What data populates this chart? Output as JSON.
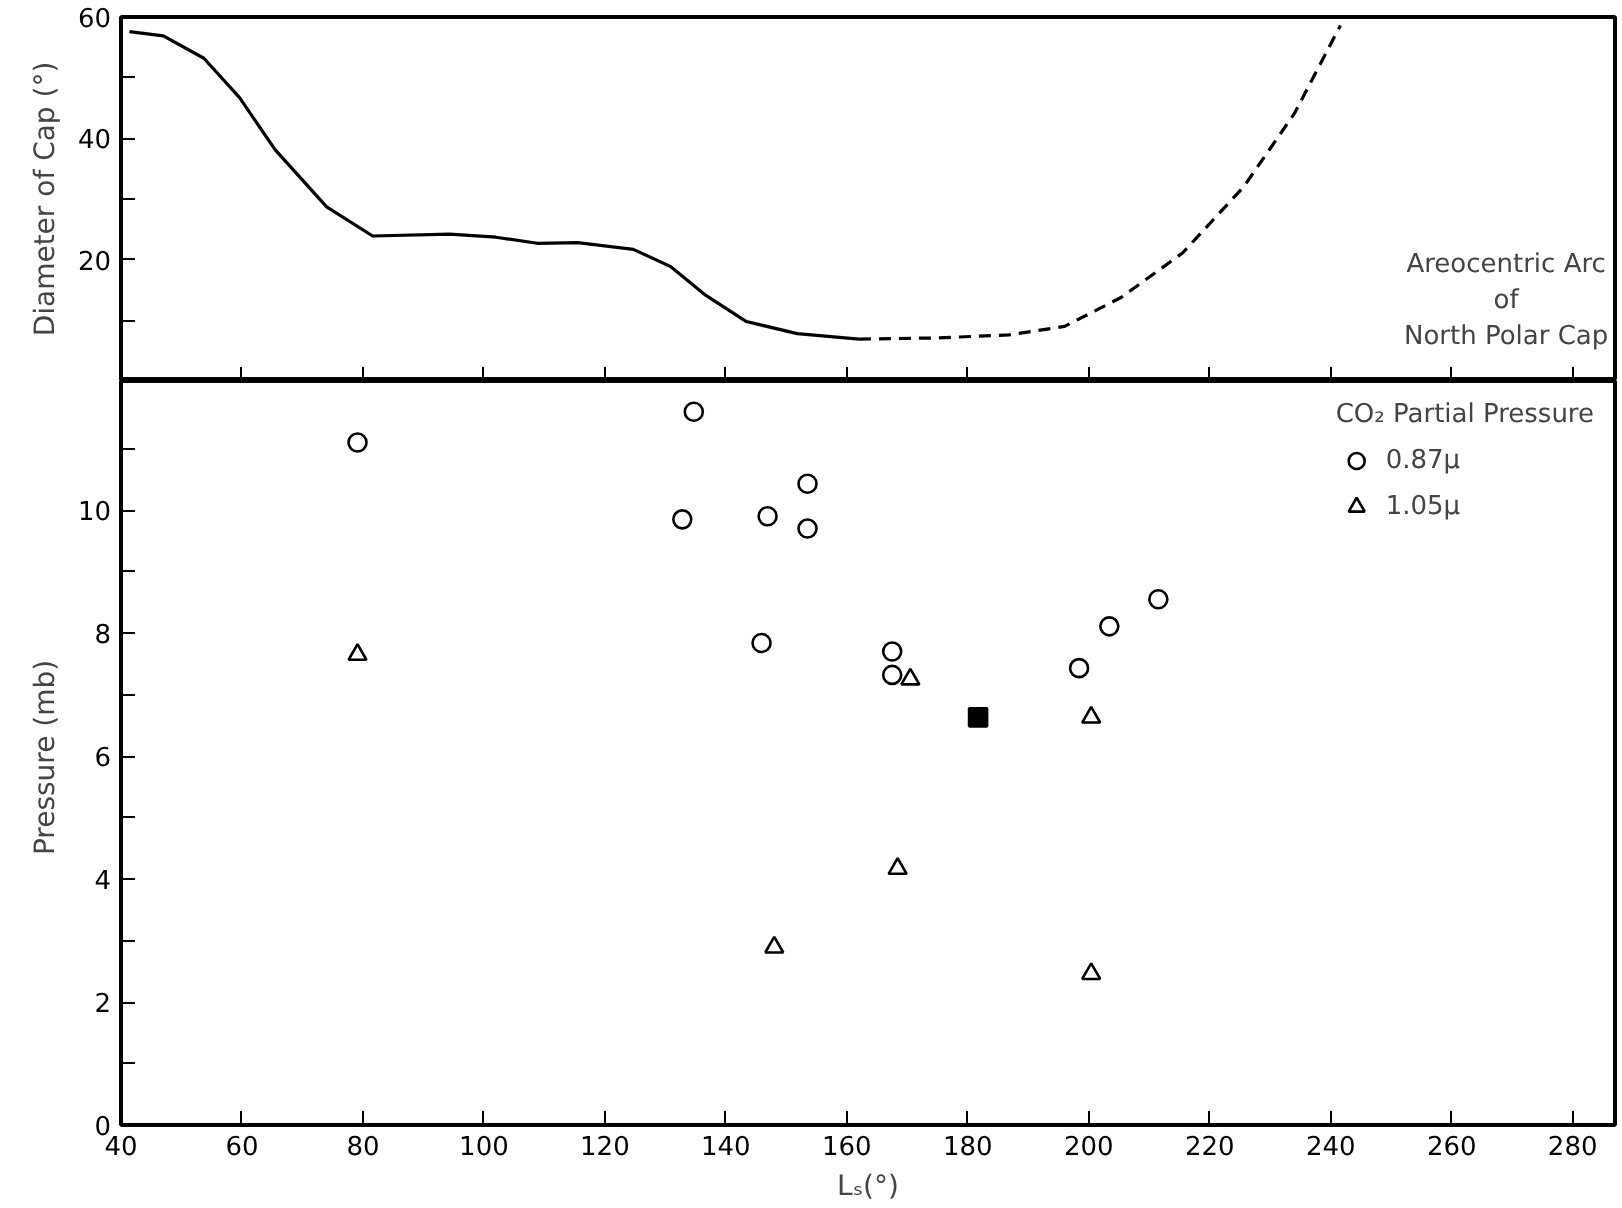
{
  "chart_data": [
    {
      "type": "line",
      "ylabel": "Diameter of Cap (°)",
      "xlim": [
        40,
        287
      ],
      "ylim": [
        0,
        60
      ],
      "xticks": [
        {
          "value": 40,
          "label": null
        },
        {
          "value": 60,
          "label": null
        },
        {
          "value": 80,
          "label": null
        },
        {
          "value": 100,
          "label": null
        },
        {
          "value": 120,
          "label": null
        },
        {
          "value": 140,
          "label": null
        },
        {
          "value": 160,
          "label": null
        },
        {
          "value": 180,
          "label": null
        },
        {
          "value": 200,
          "label": null
        },
        {
          "value": 220,
          "label": null
        },
        {
          "value": 240,
          "label": null
        },
        {
          "value": 260,
          "label": null
        },
        {
          "value": 280,
          "label": null
        }
      ],
      "yticks": [
        {
          "value": 10,
          "label": null
        },
        20,
        {
          "value": 30,
          "label": null
        },
        40,
        {
          "value": 50,
          "label": null
        },
        60
      ],
      "tick_labels": "y",
      "grid": false,
      "legend": false,
      "series": [
        {
          "color": "#000000",
          "line_style": "solid",
          "x": [
            41.4,
            47,
            53.7,
            59.6,
            65.5,
            74,
            81.6,
            94.3,
            102,
            108.8,
            115.5,
            124.7,
            130.8,
            136.7,
            143.4,
            151.8,
            162
          ],
          "values": [
            57.6,
            56.9,
            53.2,
            46.7,
            38.1,
            28.7,
            23.9,
            24.2,
            23.7,
            22.7,
            22.8,
            21.7,
            18.9,
            14.1,
            9.8,
            7.8,
            6.9
          ]
        },
        {
          "color": "#000000",
          "line_style": "dashed",
          "x": [
            162,
            175,
            186.8,
            196,
            205.4,
            215.5,
            225.6,
            234,
            241.6
          ],
          "values": [
            6.9,
            7.1,
            7.6,
            9.0,
            13.8,
            21.1,
            32,
            44.1,
            58.6
          ]
        }
      ],
      "annotations": [
        "Areocentric Arc\nof\nNorth Polar Cap"
      ]
    },
    {
      "type": "scatter",
      "xlabel": "Lₛ(°)",
      "ylabel": "Pressure  (mb)",
      "xlim": [
        40,
        287
      ],
      "ylim": [
        0,
        12.1
      ],
      "xticks": [
        40,
        60,
        80,
        100,
        120,
        140,
        160,
        180,
        200,
        220,
        240,
        260,
        280
      ],
      "yticks": [
        0,
        {
          "value": 1,
          "label": null
        },
        2,
        {
          "value": 3,
          "label": null
        },
        4,
        {
          "value": 5,
          "label": null
        },
        6,
        {
          "value": 7,
          "label": null
        },
        8,
        {
          "value": 9,
          "label": null
        },
        10,
        {
          "value": 11,
          "label": null
        }
      ],
      "grid": false,
      "legend": "top right",
      "legend_title": "CO₂ Partial Pressure",
      "series": [
        {
          "name": "0.87μ",
          "color": "#000000",
          "marker": "circle",
          "x": [
            79.1,
            134.7,
            132.8,
            146.9,
            153.5,
            153.5,
            145.9,
            167.5,
            167.5,
            198.4,
            203.4,
            211.5
          ],
          "values": [
            11.1,
            11.6,
            9.85,
            9.9,
            10.43,
            9.7,
            7.84,
            7.7,
            7.32,
            7.43,
            8.11,
            8.55
          ]
        },
        {
          "name": "1.05μ",
          "color": "#000000",
          "marker": "triangle",
          "x": [
            79.1,
            148,
            170.5,
            168.4,
            200.4,
            200.4
          ],
          "values": [
            7.65,
            2.89,
            7.25,
            4.17,
            6.63,
            2.46
          ]
        },
        {
          "color": "#000000",
          "marker": "square",
          "x": [
            181.7
          ],
          "values": [
            6.63
          ]
        }
      ]
    }
  ]
}
